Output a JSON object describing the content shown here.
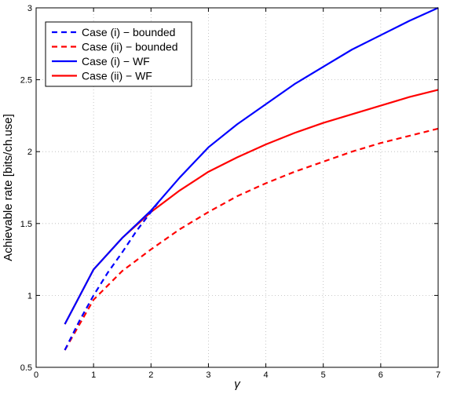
{
  "chart_data": {
    "type": "line",
    "title": "",
    "xlabel": "γ",
    "ylabel": "Achievable rate [bits/ch.use]",
    "xlim": [
      0,
      7
    ],
    "ylim": [
      0.5,
      3
    ],
    "xticks": [
      0,
      1,
      2,
      3,
      4,
      5,
      6,
      7
    ],
    "xtick_labels": [
      "0",
      "1",
      "2",
      "3",
      "4",
      "5",
      "6",
      "7"
    ],
    "yticks": [
      0.5,
      1,
      1.5,
      2,
      2.5,
      3
    ],
    "ytick_labels": [
      "0.5",
      "1",
      "1.5",
      "2",
      "2.5",
      "3"
    ],
    "grid": true,
    "legend_position": "top-left",
    "series": [
      {
        "name": "Case (i) − bounded",
        "color": "#0000ff",
        "style": "dashed",
        "x": [
          0.5,
          0.75,
          1.0,
          1.25,
          1.5,
          1.75,
          2.0,
          2.15
        ],
        "y": [
          0.62,
          0.82,
          1.0,
          1.16,
          1.3,
          1.45,
          1.58,
          1.66
        ]
      },
      {
        "name": "Case (ii) − bounded",
        "color": "#ff0000",
        "style": "dashed",
        "x": [
          0.5,
          1.0,
          1.5,
          2.0,
          2.5,
          3.0,
          3.5,
          4.0,
          4.5,
          5.0,
          5.5,
          6.0,
          6.5,
          7.0
        ],
        "y": [
          0.62,
          0.97,
          1.17,
          1.32,
          1.46,
          1.58,
          1.69,
          1.78,
          1.86,
          1.93,
          2.0,
          2.06,
          2.11,
          2.16
        ]
      },
      {
        "name": "Case (i) − WF",
        "color": "#0000ff",
        "style": "solid",
        "x": [
          0.5,
          1.0,
          1.5,
          2.0,
          2.5,
          3.0,
          3.5,
          4.0,
          4.5,
          5.0,
          5.5,
          6.0,
          6.5,
          7.0
        ],
        "y": [
          0.8,
          1.18,
          1.4,
          1.59,
          1.82,
          2.03,
          2.19,
          2.33,
          2.47,
          2.59,
          2.71,
          2.81,
          2.91,
          3.0
        ]
      },
      {
        "name": "Case (ii) − WF",
        "color": "#ff0000",
        "style": "solid",
        "x": [
          0.5,
          1.0,
          1.5,
          2.0,
          2.5,
          3.0,
          3.5,
          4.0,
          4.5,
          5.0,
          5.5,
          6.0,
          6.5,
          7.0
        ],
        "y": [
          0.8,
          1.18,
          1.4,
          1.58,
          1.73,
          1.86,
          1.96,
          2.05,
          2.13,
          2.2,
          2.26,
          2.32,
          2.38,
          2.43
        ]
      }
    ]
  }
}
